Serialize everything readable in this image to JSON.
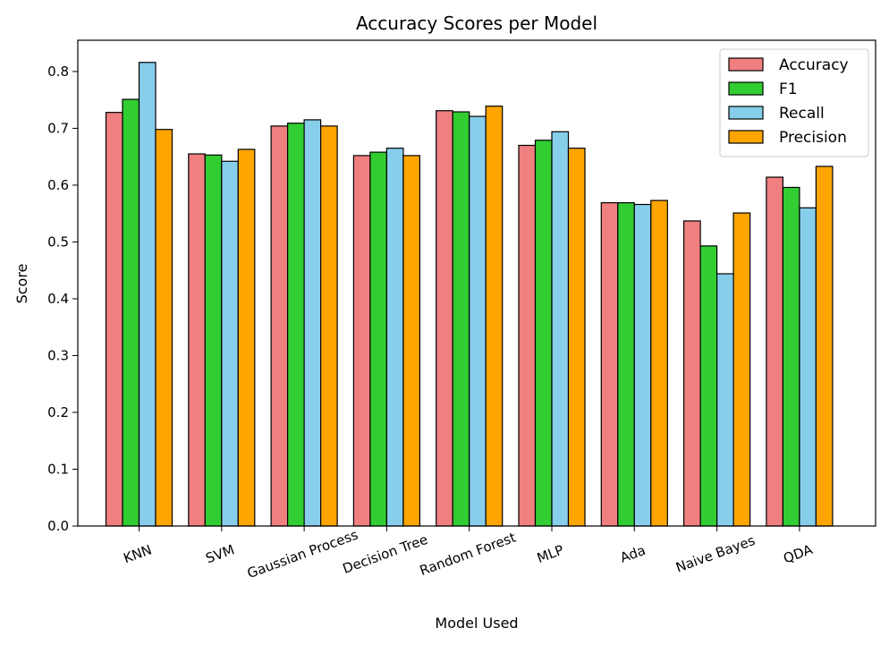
{
  "chart_data": {
    "type": "bar",
    "title": "Accuracy Scores per Model",
    "xlabel": "Model Used",
    "ylabel": "Score",
    "ylim": [
      0,
      0.855
    ],
    "yticks": [
      0.0,
      0.1,
      0.2,
      0.3,
      0.4,
      0.5,
      0.6,
      0.7,
      0.8
    ],
    "grid": false,
    "legend_position": "top-right",
    "categories": [
      "KNN",
      "SVM",
      "Gaussian Process",
      "Decision Tree",
      "Random Forest",
      "MLP",
      "Ada",
      "Naive Bayes",
      "QDA"
    ],
    "series": [
      {
        "name": "Accuracy",
        "color": "#F08080",
        "values": [
          0.728,
          0.655,
          0.704,
          0.652,
          0.731,
          0.67,
          0.569,
          0.537,
          0.614
        ]
      },
      {
        "name": "F1",
        "color": "#32CD32",
        "values": [
          0.751,
          0.653,
          0.709,
          0.658,
          0.729,
          0.679,
          0.569,
          0.493,
          0.596
        ]
      },
      {
        "name": "Recall",
        "color": "#87CEEB",
        "values": [
          0.816,
          0.642,
          0.715,
          0.665,
          0.721,
          0.694,
          0.566,
          0.444,
          0.56
        ]
      },
      {
        "name": "Precision",
        "color": "#FFA500",
        "values": [
          0.698,
          0.663,
          0.704,
          0.652,
          0.739,
          0.665,
          0.573,
          0.551,
          0.633
        ]
      }
    ]
  }
}
